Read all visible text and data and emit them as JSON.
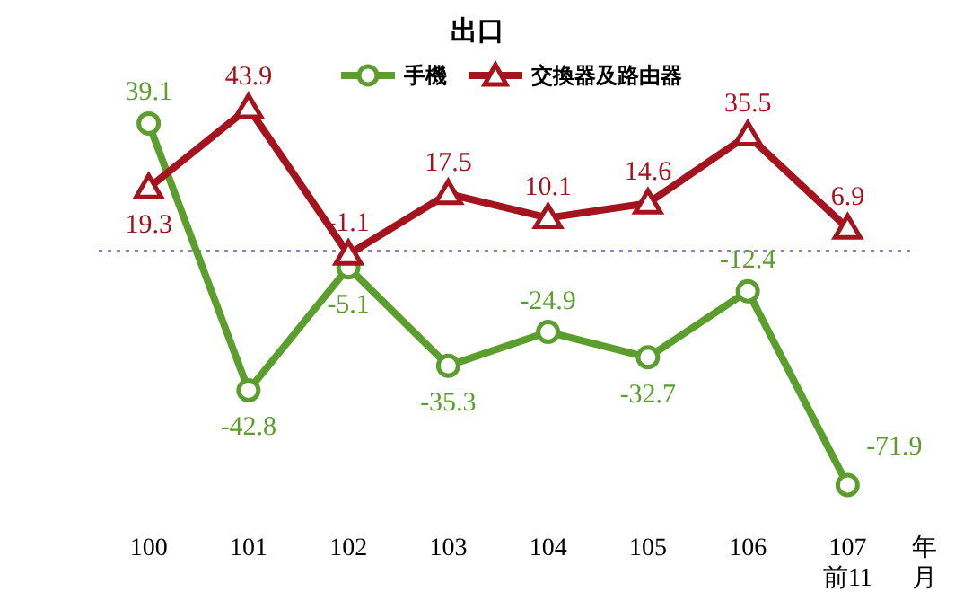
{
  "chart_data": {
    "type": "line",
    "title": "出口",
    "categories": [
      "100",
      "101",
      "102",
      "103",
      "104",
      "105",
      "106",
      "107\n前11"
    ],
    "xlabel": "年月",
    "series": [
      {
        "name": "手機",
        "color": "#5c9e2e",
        "marker": "circle",
        "values": [
          39.1,
          -42.8,
          -5.1,
          -35.3,
          -24.9,
          -32.7,
          -12.4,
          -71.9
        ]
      },
      {
        "name": "交換器及路由器",
        "color": "#a3141f",
        "marker": "triangle",
        "values": [
          19.3,
          43.9,
          -1.1,
          17.5,
          10.1,
          14.6,
          35.5,
          6.9
        ]
      }
    ],
    "ref_lines": [
      {
        "axis": "y",
        "value": 0,
        "color": "#8a7fd0",
        "line_style": "dotted"
      }
    ],
    "data_labels": true,
    "legend": "top",
    "line_style": "solid"
  }
}
